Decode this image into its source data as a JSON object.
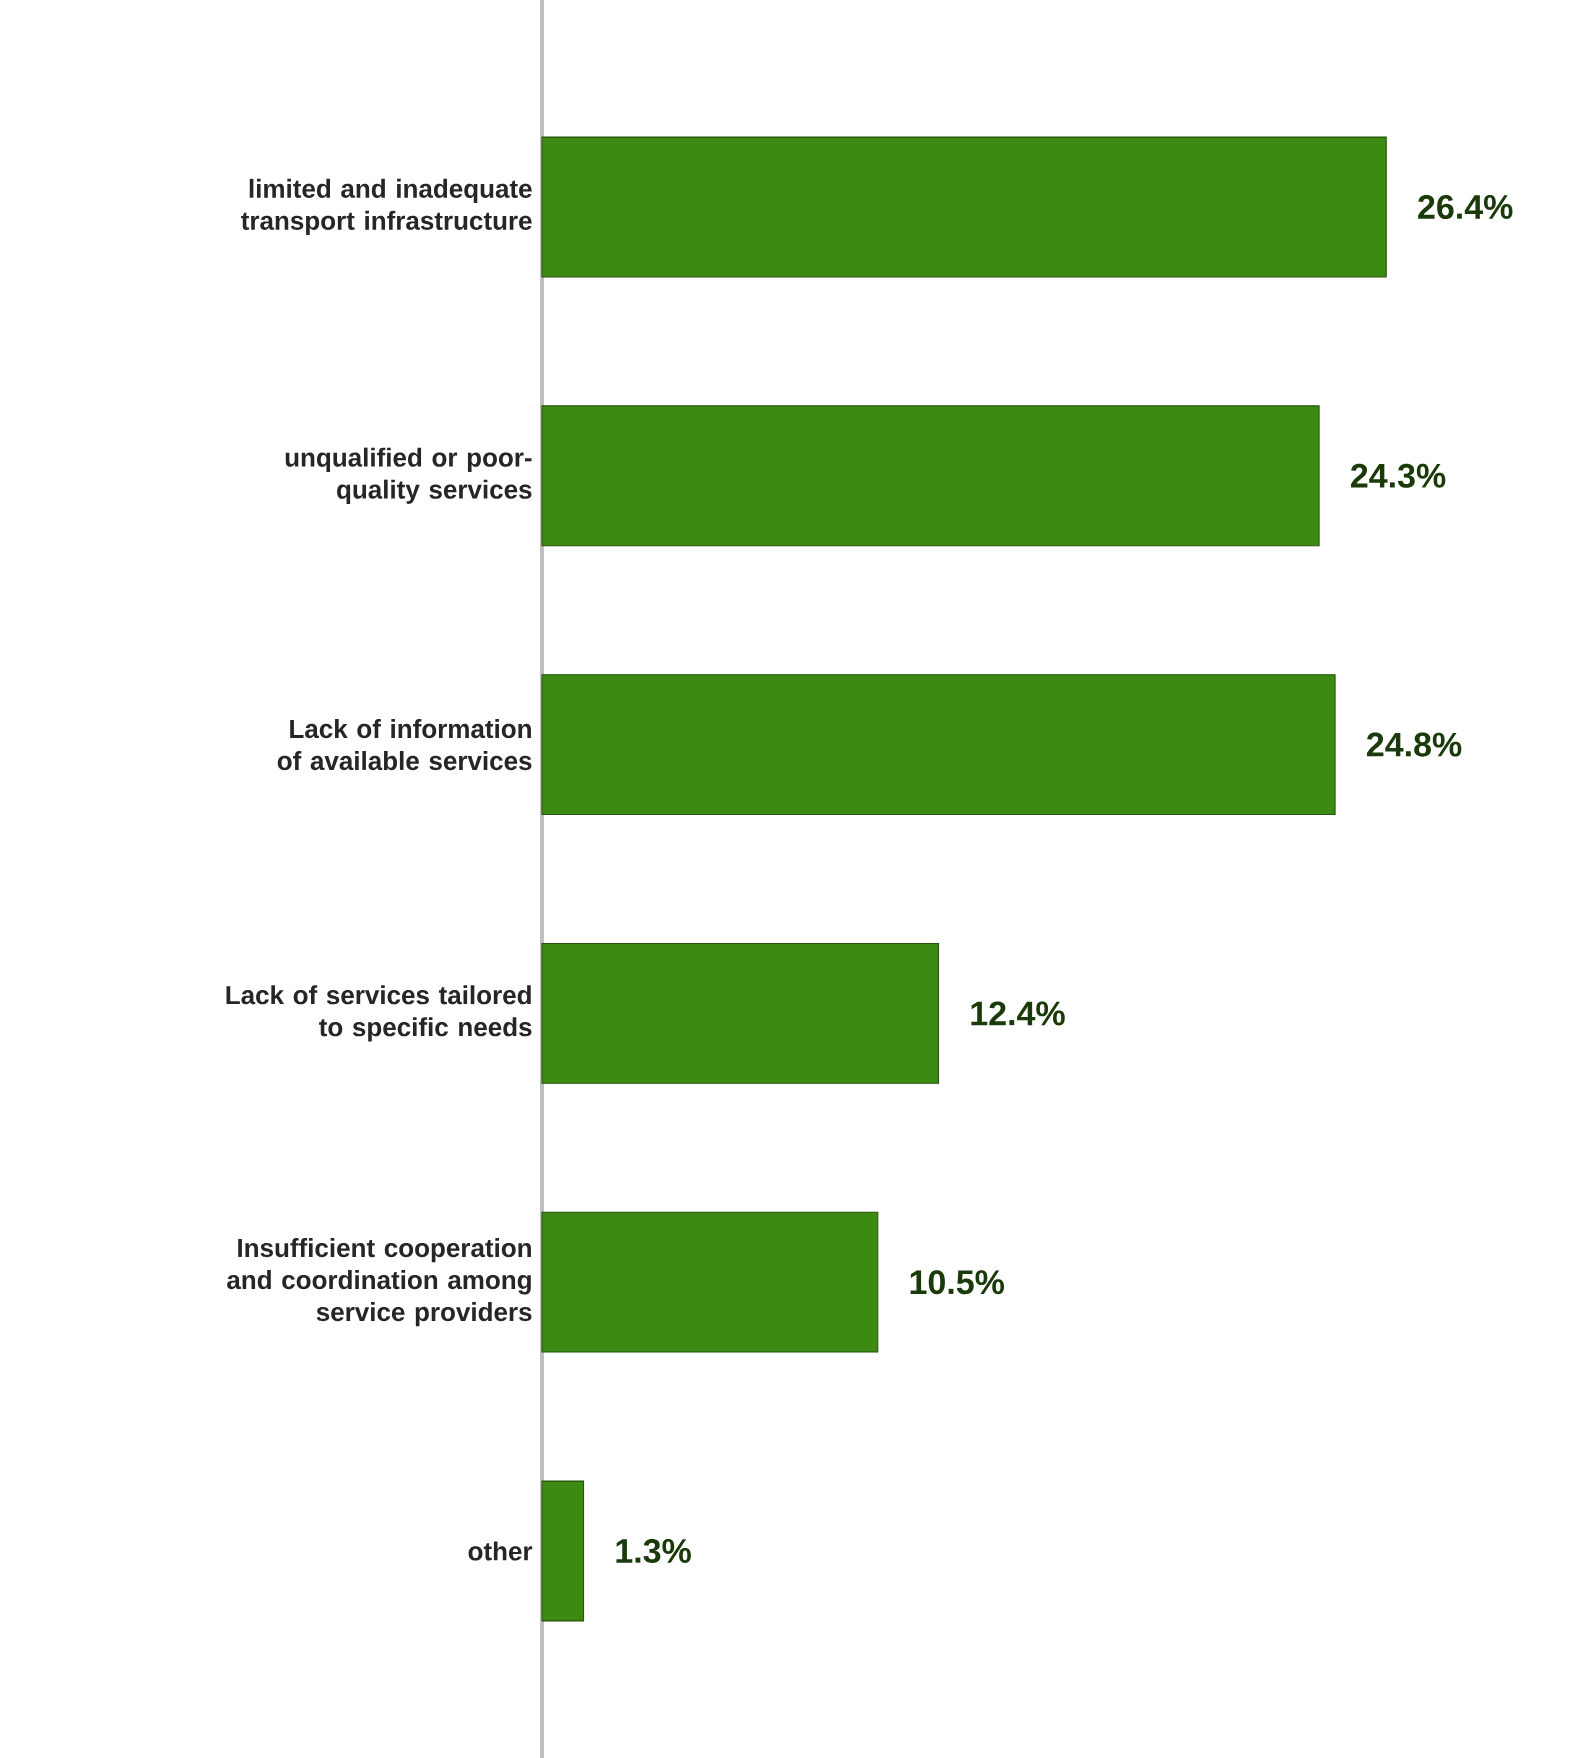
{
  "chart_data": {
    "type": "bar",
    "orientation": "horizontal",
    "categories": [
      "limited and inadequate transport infrastructure",
      "unqualified or poor-quality services",
      "Lack of information of available services",
      "Lack of services tailored to specific needs",
      "Insufficient cooperation and coordination among service providers",
      "other"
    ],
    "values": [
      26.4,
      24.3,
      24.8,
      12.4,
      10.5,
      1.3
    ],
    "value_labels": [
      "26.4%",
      "24.3%",
      "24.8%",
      "12.4%",
      "10.5%",
      "1.3%"
    ],
    "color": "#3d8a12"
  }
}
